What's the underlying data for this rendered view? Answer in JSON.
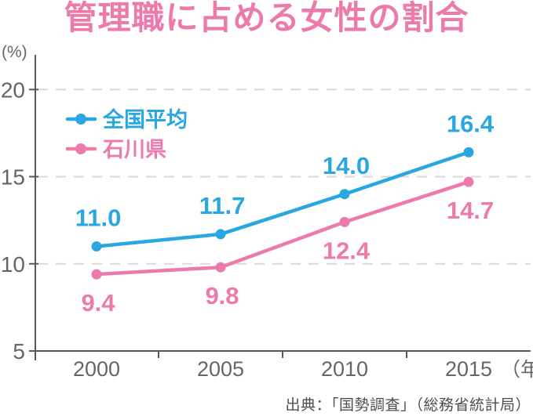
{
  "title": "管理職に占める女性の割合",
  "y_axis_unit": "(%)",
  "x_axis_unit": "（年）",
  "source": "出典：「国勢調査」（総務省統計局）",
  "colors": {
    "national_average": "#29a7e0",
    "ishikawa": "#ec7bac",
    "title": "#ec7bac",
    "axis": "#595959",
    "grid": "#d9d9d9",
    "tick_label": "#666666",
    "source_text": "#4d4d4d"
  },
  "chart_data": {
    "type": "line",
    "title": "管理職に占める女性の割合",
    "categories": [
      "2000",
      "2005",
      "2010",
      "2015"
    ],
    "series": [
      {
        "name": "全国平均",
        "values": [
          11.0,
          11.7,
          14.0,
          16.4
        ],
        "value_labels": [
          "11.0",
          "11.7",
          "14.0",
          "16.4"
        ],
        "color_key": "national_average",
        "label_side": "above"
      },
      {
        "name": "石川県",
        "values": [
          9.4,
          9.8,
          12.4,
          14.7
        ],
        "value_labels": [
          "9.4",
          "9.8",
          "12.4",
          "14.7"
        ],
        "color_key": "ishikawa",
        "label_side": "below"
      }
    ],
    "ylabel": "(%)",
    "xlabel": "（年）",
    "yticks": [
      5,
      10,
      15,
      20
    ],
    "ylim": [
      5,
      21.5
    ],
    "grid": "horizontal-dashed",
    "legend_position": "top-left",
    "source": "出典：「国勢調査」（総務省統計局）"
  }
}
